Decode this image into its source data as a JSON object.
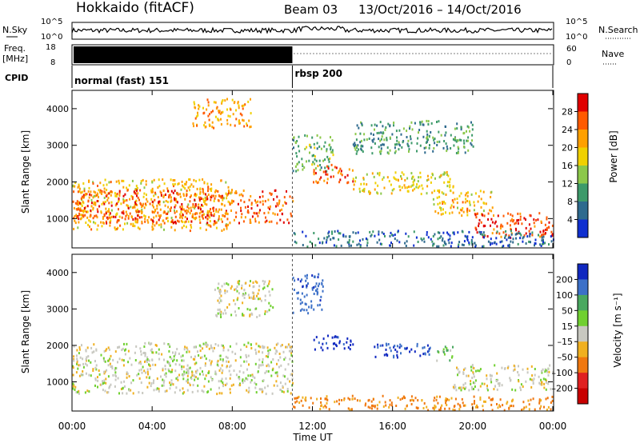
{
  "header": {
    "station": "Hokkaido (fitACF)",
    "beam": "Beam 03",
    "date_range": "13/Oct/2016 – 14/Oct/2016"
  },
  "meta_panels": {
    "nsky_label": "N.Sky",
    "nsearch_label": "N.Search",
    "freq_label_1": "Freq.",
    "freq_label_2": "[MHz]",
    "nave_label": "Nave",
    "cpid_label": "CPID",
    "left_scale_top": "10^5",
    "left_scale_bottom": "10^0",
    "right_scale_top": "10^5",
    "right_scale_bottom": "10^0",
    "freq_ticks": [
      "18",
      "8"
    ],
    "nave_ticks": [
      "60",
      "0"
    ],
    "cpid_segments": [
      {
        "label": "normal (fast) 151",
        "start_hour": 0,
        "end_hour": 11
      },
      {
        "label": "rbsp 200",
        "start_hour": 11,
        "end_hour": 24
      }
    ]
  },
  "colors": {
    "frame": "#000000",
    "range_separator": "#555555"
  },
  "chart_data": [
    {
      "type": "heatmap",
      "panel": "power",
      "ylabel": "Slant Range [km]",
      "yticks": [
        1000,
        2000,
        3000,
        4000
      ],
      "ylim": [
        200,
        4500
      ],
      "xlim_hours": [
        0,
        24
      ],
      "colorbar": {
        "label": "Power [dB]",
        "ticks": [
          "28",
          "24",
          "20",
          "16",
          "12",
          "8",
          "4"
        ],
        "colors": [
          "#e00000",
          "#ff5a00",
          "#ffa000",
          "#f0d000",
          "#8cc84a",
          "#3d9a6a",
          "#2e6a8e",
          "#1030d0"
        ]
      },
      "regions": [
        {
          "t0": 0.0,
          "t1": 8.0,
          "r0": 700,
          "r1": 2100,
          "value": 20
        },
        {
          "t0": 0.0,
          "t1": 11.0,
          "r0": 900,
          "r1": 1800,
          "value": 26
        },
        {
          "t0": 6.0,
          "t1": 9.0,
          "r0": 3500,
          "r1": 4300,
          "value": 22
        },
        {
          "t0": 11.0,
          "t1": 13.0,
          "r0": 2300,
          "r1": 3300,
          "value": 12
        },
        {
          "t0": 12.0,
          "t1": 14.0,
          "r0": 2000,
          "r1": 2500,
          "value": 26
        },
        {
          "t0": 14.0,
          "t1": 19.0,
          "r0": 1700,
          "r1": 2300,
          "value": 18
        },
        {
          "t0": 14.0,
          "t1": 20.0,
          "r0": 2800,
          "r1": 3700,
          "value": 10
        },
        {
          "t0": 18.0,
          "t1": 21.0,
          "r0": 1100,
          "r1": 1800,
          "value": 20
        },
        {
          "t0": 20.0,
          "t1": 24.0,
          "r0": 500,
          "r1": 1200,
          "value": 28
        },
        {
          "t0": 11.0,
          "t1": 24.0,
          "r0": 250,
          "r1": 700,
          "value": 6
        }
      ]
    },
    {
      "type": "heatmap",
      "panel": "velocity",
      "ylabel": "Slant Range [km]",
      "yticks": [
        1000,
        2000,
        3000,
        4000
      ],
      "ylim": [
        200,
        4500
      ],
      "xlim_hours": [
        0,
        24
      ],
      "xlabel": "Time UT",
      "xticks": [
        "00:00",
        "04:00",
        "08:00",
        "12:00",
        "16:00",
        "20:00",
        "00:00"
      ],
      "colorbar": {
        "label": "Velocity [m s⁻¹]",
        "ticks": [
          "200",
          "100",
          "50",
          "15",
          "–15",
          "–50",
          "–100",
          "–200"
        ],
        "colors": [
          "#1028c0",
          "#3c70c8",
          "#4aa860",
          "#70d030",
          "#c8c8c0",
          "#f0b020",
          "#f07810",
          "#e02020",
          "#c80000"
        ]
      },
      "regions": [
        {
          "t0": 0.0,
          "t1": 11.0,
          "r0": 700,
          "r1": 2100,
          "value": 0
        },
        {
          "t0": 7.0,
          "t1": 10.0,
          "r0": 2800,
          "r1": 3800,
          "value": 0
        },
        {
          "t0": 11.0,
          "t1": 12.5,
          "r0": 2900,
          "r1": 4000,
          "value": 180
        },
        {
          "t0": 12.0,
          "t1": 14.0,
          "r0": 1900,
          "r1": 2300,
          "value": 220
        },
        {
          "t0": 15.0,
          "t1": 18.0,
          "r0": 1700,
          "r1": 2100,
          "value": 200
        },
        {
          "t0": 18.0,
          "t1": 19.0,
          "r0": 1600,
          "r1": 2000,
          "value": 40
        },
        {
          "t0": 19.0,
          "t1": 24.0,
          "r0": 800,
          "r1": 1500,
          "value": 0
        },
        {
          "t0": 11.0,
          "t1": 24.0,
          "r0": 250,
          "r1": 650,
          "value": -60
        }
      ]
    }
  ]
}
